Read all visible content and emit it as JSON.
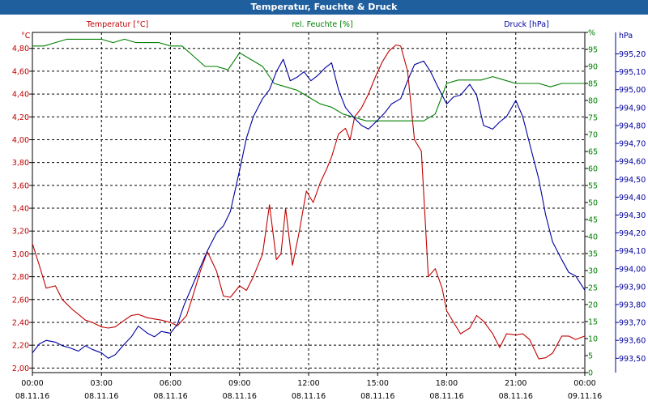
{
  "title": "Temperatur, Feuchte & Druck",
  "colors": {
    "temperature": "#c00000",
    "humidity": "#008000",
    "pressure": "#0000a0",
    "title_bar": "#1f5f9e"
  },
  "chart_data": {
    "type": "line",
    "title": "Temperatur, Feuchte & Druck",
    "grid": true,
    "x_tick_labels": [
      [
        "00:00",
        "08.11.16"
      ],
      [
        "03:00",
        "08.11.16"
      ],
      [
        "06:00",
        "08.11.16"
      ],
      [
        "09:00",
        "08.11.16"
      ],
      [
        "12:00",
        "08.11.16"
      ],
      [
        "15:00",
        "08.11.16"
      ],
      [
        "18:00",
        "08.11.16"
      ],
      [
        "21:00",
        "08.11.16"
      ],
      [
        "00:00",
        "09.11.16"
      ]
    ],
    "x_range_hours": [
      0,
      24
    ],
    "axes": {
      "temperature": {
        "label": "Temperatur [°C]",
        "unit": "°C",
        "range": [
          1.96,
          4.94
        ],
        "ticks": [
          "2,00",
          "2,20",
          "2,40",
          "2,60",
          "2,80",
          "3,00",
          "3,20",
          "3,40",
          "3,60",
          "3,80",
          "4,00",
          "4,20",
          "4,40",
          "4,60",
          "4,80"
        ],
        "tick_values": [
          2.0,
          2.2,
          2.4,
          2.6,
          2.8,
          3.0,
          3.2,
          3.4,
          3.6,
          3.8,
          4.0,
          4.2,
          4.4,
          4.6,
          4.8
        ]
      },
      "humidity": {
        "label": "rel. Feuchte [%]",
        "unit": "%",
        "range": [
          0,
          100
        ],
        "ticks": [
          "0",
          "5",
          "10",
          "15",
          "20",
          "25",
          "30",
          "35",
          "40",
          "45",
          "50",
          "55",
          "60",
          "65",
          "70",
          "75",
          "80",
          "85",
          "90",
          "95",
          "%"
        ],
        "tick_values": [
          0,
          5,
          10,
          15,
          20,
          25,
          30,
          35,
          40,
          45,
          50,
          55,
          60,
          65,
          70,
          75,
          80,
          85,
          90,
          95,
          100
        ]
      },
      "pressure": {
        "label": "Druck [hPa]",
        "unit": "hPa",
        "range": [
          993.42,
          995.32
        ],
        "ticks": [
          "993,50",
          "993,60",
          "993,70",
          "993,80",
          "993,90",
          "994,00",
          "994,10",
          "994,20",
          "994,30",
          "994,40",
          "994,50",
          "994,60",
          "994,70",
          "994,80",
          "994,90",
          "995,00",
          "995,10",
          "995,20"
        ],
        "tick_values": [
          993.5,
          993.6,
          993.7,
          993.8,
          993.9,
          994.0,
          994.1,
          994.2,
          994.3,
          994.4,
          994.5,
          994.6,
          994.7,
          994.8,
          994.9,
          995.0,
          995.1,
          995.2
        ]
      }
    },
    "series": [
      {
        "name": "Temperatur [°C]",
        "axis": "temperature",
        "x": [
          0,
          0.3,
          0.6,
          1.0,
          1.3,
          1.7,
          2.0,
          2.3,
          2.6,
          3.0,
          3.3,
          3.6,
          4.0,
          4.3,
          4.6,
          5.0,
          5.3,
          5.6,
          6.0,
          6.3,
          6.7,
          7.0,
          7.3,
          7.6,
          8.0,
          8.3,
          8.6,
          9.0,
          9.3,
          9.6,
          10.0,
          10.3,
          10.6,
          10.8,
          11.0,
          11.3,
          11.6,
          11.9,
          12.2,
          12.5,
          12.8,
          13.0,
          13.3,
          13.6,
          13.8,
          14.0,
          14.3,
          14.6,
          14.9,
          15.2,
          15.5,
          15.8,
          16.0,
          16.3,
          16.6,
          16.9,
          17.2,
          17.5,
          17.8,
          18.0,
          18.3,
          18.6,
          19.0,
          19.3,
          19.6,
          20.0,
          20.3,
          20.6,
          21.0,
          21.3,
          21.6,
          22.0,
          22.3,
          22.6,
          23.0,
          23.3,
          23.6,
          24.0
        ],
        "values": [
          3.09,
          2.9,
          2.7,
          2.72,
          2.6,
          2.52,
          2.47,
          2.42,
          2.4,
          2.36,
          2.35,
          2.36,
          2.42,
          2.46,
          2.47,
          2.44,
          2.43,
          2.42,
          2.4,
          2.37,
          2.46,
          2.65,
          2.85,
          3.02,
          2.85,
          2.63,
          2.62,
          2.72,
          2.68,
          2.8,
          3.0,
          3.43,
          2.95,
          3.0,
          3.4,
          2.9,
          3.2,
          3.55,
          3.45,
          3.62,
          3.75,
          3.85,
          4.05,
          4.1,
          4.0,
          4.2,
          4.28,
          4.4,
          4.55,
          4.68,
          4.78,
          4.83,
          4.82,
          4.6,
          4.0,
          3.9,
          2.8,
          2.87,
          2.7,
          2.5,
          2.4,
          2.3,
          2.35,
          2.46,
          2.41,
          2.3,
          2.18,
          2.3,
          2.29,
          2.3,
          2.25,
          2.08,
          2.09,
          2.13,
          2.28,
          2.28,
          2.25,
          2.28
        ]
      },
      {
        "name": "rel. Feuchte [%]",
        "axis": "humidity",
        "x": [
          0,
          0.5,
          1.0,
          1.5,
          2.0,
          2.5,
          3.0,
          3.5,
          4.0,
          4.5,
          5.0,
          5.5,
          6.0,
          6.5,
          7.0,
          7.5,
          8.0,
          8.5,
          9.0,
          9.5,
          10.0,
          10.5,
          11.0,
          11.5,
          12.0,
          12.5,
          13.0,
          13.5,
          14.0,
          14.5,
          15.0,
          15.5,
          16.0,
          16.5,
          17.0,
          17.5,
          18.0,
          18.5,
          19.0,
          19.5,
          20.0,
          20.5,
          21.0,
          21.5,
          22.0,
          22.5,
          23.0,
          23.5,
          24.0
        ],
        "values": [
          96,
          96,
          97,
          98,
          98,
          98,
          98,
          97,
          98,
          97,
          97,
          97,
          96,
          96,
          93,
          90,
          90,
          89,
          94,
          92,
          90,
          85,
          84,
          83,
          81,
          79,
          78,
          76,
          75,
          74,
          74,
          74,
          74,
          74,
          74,
          76,
          85,
          86,
          86,
          86,
          87,
          86,
          85,
          85,
          85,
          84,
          85,
          85,
          85
        ]
      },
      {
        "name": "Druck [hPa]",
        "axis": "pressure",
        "x": [
          0,
          0.3,
          0.6,
          1.0,
          1.3,
          1.6,
          2.0,
          2.3,
          2.6,
          3.0,
          3.3,
          3.6,
          4.0,
          4.3,
          4.6,
          5.0,
          5.3,
          5.6,
          6.0,
          6.3,
          6.6,
          7.0,
          7.3,
          7.6,
          8.0,
          8.3,
          8.6,
          9.0,
          9.3,
          9.6,
          10.0,
          10.3,
          10.6,
          10.9,
          11.2,
          11.5,
          11.8,
          12.1,
          12.4,
          12.7,
          13.0,
          13.3,
          13.6,
          14.0,
          14.3,
          14.6,
          15.0,
          15.3,
          15.6,
          16.0,
          16.3,
          16.6,
          17.0,
          17.3,
          17.6,
          18.0,
          18.3,
          18.6,
          19.0,
          19.3,
          19.6,
          20.0,
          20.3,
          20.6,
          21.0,
          21.3,
          21.6,
          22.0,
          22.3,
          22.6,
          23.0,
          23.3,
          23.6,
          24.0
        ],
        "values": [
          993.53,
          993.58,
          993.6,
          993.59,
          993.57,
          993.56,
          993.54,
          993.57,
          993.55,
          993.53,
          993.5,
          993.52,
          993.58,
          993.62,
          993.68,
          993.64,
          993.62,
          993.65,
          993.64,
          993.69,
          993.8,
          993.92,
          994.01,
          994.1,
          994.2,
          994.24,
          994.32,
          994.55,
          994.73,
          994.85,
          994.95,
          995.0,
          995.1,
          995.17,
          995.05,
          995.07,
          995.1,
          995.05,
          995.08,
          995.12,
          995.15,
          995.0,
          994.9,
          994.84,
          994.8,
          994.78,
          994.83,
          994.87,
          994.92,
          994.95,
          995.05,
          995.14,
          995.16,
          995.1,
          995.02,
          994.92,
          994.96,
          994.97,
          995.03,
          994.97,
          994.8,
          994.78,
          994.82,
          994.85,
          994.94,
          994.85,
          994.7,
          994.5,
          994.3,
          994.15,
          994.05,
          993.98,
          993.96,
          993.88
        ]
      }
    ]
  }
}
